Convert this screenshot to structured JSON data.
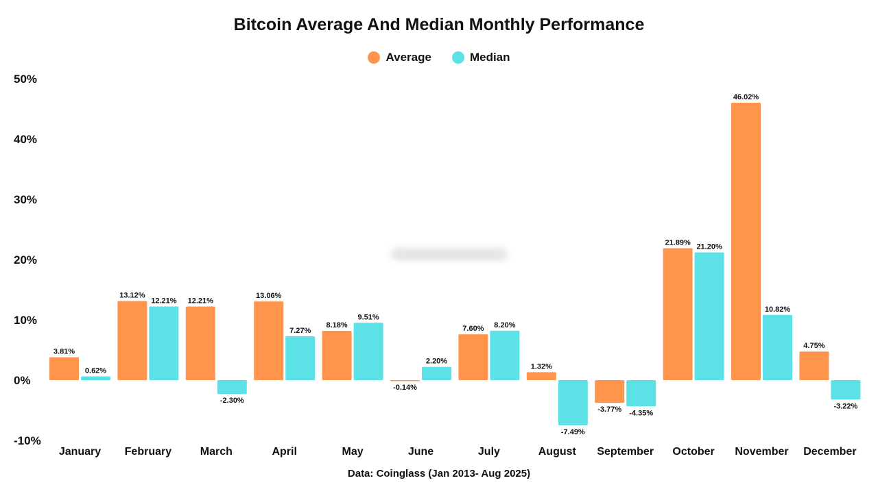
{
  "chart_data": {
    "type": "bar",
    "title": "Bitcoin Average And Median Monthly Performance",
    "source": "Data: Coinglass (Jan 2013- Aug 2025)",
    "categories": [
      "January",
      "February",
      "March",
      "April",
      "May",
      "June",
      "July",
      "August",
      "September",
      "October",
      "November",
      "December"
    ],
    "series": [
      {
        "name": "Average",
        "color": "#FF944D",
        "values": [
          3.81,
          13.12,
          12.21,
          13.06,
          8.18,
          -0.14,
          7.6,
          1.32,
          -3.77,
          21.89,
          46.02,
          4.75
        ],
        "labels": [
          "3.81%",
          "13.12%",
          "12.21%",
          "13.06%",
          "8.18%",
          "-0.14%",
          "7.60%",
          "1.32%",
          "-3.77%",
          "21.89%",
          "46.02%",
          "4.75%"
        ]
      },
      {
        "name": "Median",
        "color": "#5CE1E6",
        "values": [
          0.62,
          12.21,
          -2.3,
          7.27,
          9.51,
          2.2,
          8.2,
          -7.49,
          -4.35,
          21.2,
          10.82,
          -3.22
        ],
        "labels": [
          "0.62%",
          "12.21%",
          "-2.30%",
          "7.27%",
          "9.51%",
          "2.20%",
          "8.20%",
          "-7.49%",
          "-4.35%",
          "21.20%",
          "10.82%",
          "-3.22%"
        ]
      }
    ],
    "yticks": [
      50,
      40,
      30,
      20,
      10,
      0,
      -10
    ],
    "ytick_labels": [
      "50%",
      "40%",
      "30%",
      "20%",
      "10%",
      "0%",
      "-10%"
    ],
    "ylim": [
      -10,
      50
    ],
    "grid": false,
    "legend_position": "top-center"
  }
}
